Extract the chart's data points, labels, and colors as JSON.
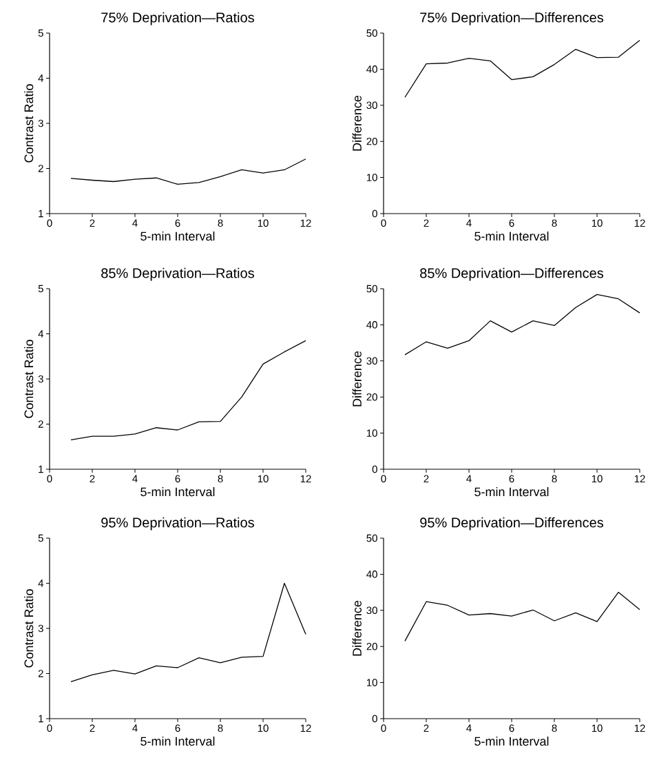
{
  "chart_data": [
    {
      "type": "line",
      "title": "75% Deprivation—Ratios",
      "xlabel": "5-min Interval",
      "ylabel": "Contrast Ratio",
      "x": [
        1,
        2,
        3,
        4,
        5,
        6,
        7,
        8,
        9,
        10,
        11,
        12
      ],
      "values": [
        1.78,
        1.74,
        1.71,
        1.76,
        1.79,
        1.65,
        1.69,
        1.82,
        1.97,
        1.9,
        1.97,
        2.21
      ],
      "color": "#000000",
      "xlim": [
        0,
        12
      ],
      "ylim": [
        1,
        5
      ],
      "xticks": [
        0,
        2,
        4,
        6,
        8,
        10,
        12
      ],
      "yticks": [
        1,
        2,
        3,
        4,
        5
      ]
    },
    {
      "type": "line",
      "title": "75% Deprivation—Differences",
      "xlabel": "5-min Interval",
      "ylabel": "Difference",
      "x": [
        1,
        2,
        3,
        4,
        5,
        6,
        7,
        8,
        9,
        10,
        11,
        12
      ],
      "values": [
        32.2,
        41.5,
        41.7,
        43,
        42.3,
        37.1,
        37.9,
        41.3,
        45.5,
        43.2,
        43.3,
        48
      ],
      "color": "#000000",
      "xlim": [
        0,
        12
      ],
      "ylim": [
        0,
        50
      ],
      "xticks": [
        0,
        2,
        4,
        6,
        8,
        10,
        12
      ],
      "yticks": [
        0,
        10,
        20,
        30,
        40,
        50
      ]
    },
    {
      "type": "line",
      "title": "85% Deprivation—Ratios",
      "xlabel": "5-min Interval",
      "ylabel": "Contrast Ratio",
      "x": [
        1,
        2,
        3,
        4,
        5,
        6,
        7,
        8,
        9,
        10,
        11,
        12
      ],
      "values": [
        1.65,
        1.73,
        1.73,
        1.78,
        1.92,
        1.87,
        2.05,
        2.06,
        2.6,
        3.33,
        3.6,
        3.85
      ],
      "color": "#000000",
      "xlim": [
        0,
        12
      ],
      "ylim": [
        1,
        5
      ],
      "xticks": [
        0,
        2,
        4,
        6,
        8,
        10,
        12
      ],
      "yticks": [
        1,
        2,
        3,
        4,
        5
      ]
    },
    {
      "type": "line",
      "title": "85% Deprivation—Differences",
      "xlabel": "5-min Interval",
      "ylabel": "Difference",
      "x": [
        1,
        2,
        3,
        4,
        5,
        6,
        7,
        8,
        9,
        10,
        11,
        12
      ],
      "values": [
        31.7,
        35.3,
        33.5,
        35.6,
        41.1,
        38,
        41.1,
        39.8,
        44.8,
        48.4,
        47.2,
        43.3
      ],
      "color": "#000000",
      "xlim": [
        0,
        12
      ],
      "ylim": [
        0,
        50
      ],
      "xticks": [
        0,
        2,
        4,
        6,
        8,
        10,
        12
      ],
      "yticks": [
        0,
        10,
        20,
        30,
        40,
        50
      ]
    },
    {
      "type": "line",
      "title": "95% Deprivation—Ratios",
      "xlabel": "5-min Interval",
      "ylabel": "Contrast Ratio",
      "x": [
        1,
        2,
        3,
        4,
        5,
        6,
        7,
        8,
        9,
        10,
        11,
        12
      ],
      "values": [
        1.82,
        1.97,
        2.07,
        1.99,
        2.17,
        2.13,
        2.35,
        2.24,
        2.36,
        2.38,
        4.0,
        2.87
      ],
      "color": "#000000",
      "xlim": [
        0,
        12
      ],
      "ylim": [
        1,
        5
      ],
      "xticks": [
        0,
        2,
        4,
        6,
        8,
        10,
        12
      ],
      "yticks": [
        1,
        2,
        3,
        4,
        5
      ]
    },
    {
      "type": "line",
      "title": "95% Deprivation—Differences",
      "xlabel": "5-min Interval",
      "ylabel": "Difference",
      "x": [
        1,
        2,
        3,
        4,
        5,
        6,
        7,
        8,
        9,
        10,
        11,
        12
      ],
      "values": [
        21.5,
        32.4,
        31.4,
        28.7,
        29.1,
        28.4,
        30.1,
        27.1,
        29.3,
        26.9,
        35,
        30.2
      ],
      "color": "#000000",
      "xlim": [
        0,
        12
      ],
      "ylim": [
        0,
        50
      ],
      "xticks": [
        0,
        2,
        4,
        6,
        8,
        10,
        12
      ],
      "yticks": [
        0,
        10,
        20,
        30,
        40,
        50
      ]
    }
  ]
}
